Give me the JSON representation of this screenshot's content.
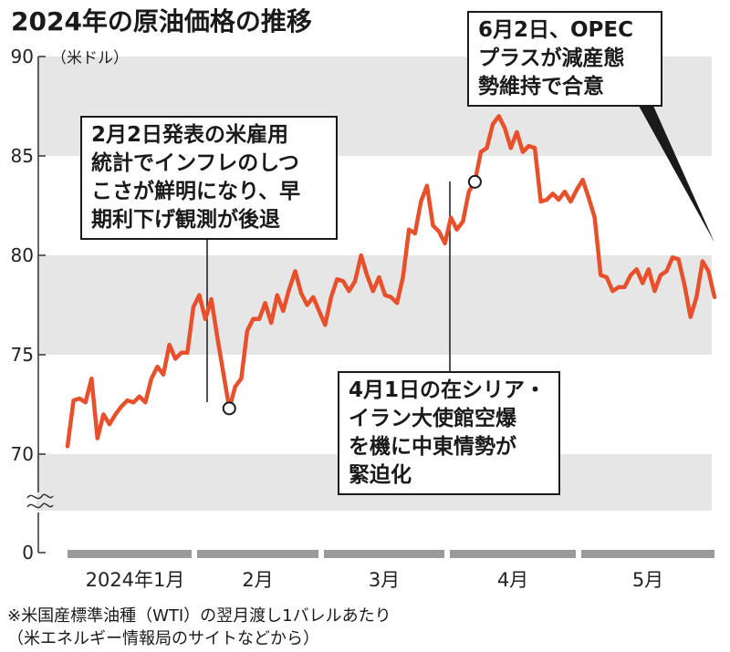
{
  "title": "2024年の原油価格の推移",
  "footnote_line1": "※米国産標準油種（WTI）の翌月渡し1バレルあたり",
  "footnote_line2": "（米エネルギー情報局のサイトなどから）",
  "annotations": [
    {
      "lines": [
        "2月2日発表の米雇用",
        "統計でインフレのしつ",
        "こさが鮮明になり、早",
        "期利下げ観測が後退"
      ]
    },
    {
      "lines": [
        "4月1日の在シリア・",
        "イラン大使館空爆",
        "を機に中東情勢が",
        "緊迫化"
      ]
    },
    {
      "lines": [
        "6月2日、OPEC",
        "プラスが減産態",
        "勢維持で合意"
      ]
    }
  ],
  "chart_data": {
    "type": "line",
    "title": "2024年の原油価格の推移",
    "y_unit": "（米ドル）",
    "y_ticks": [
      0,
      70,
      75,
      80,
      85,
      90
    ],
    "ylim": [
      70,
      90
    ],
    "axis_break": true,
    "month_labels": [
      "2024年1月",
      "2月",
      "3月",
      "4月",
      "5月"
    ],
    "colors": {
      "line": "#e8502c",
      "band": "#e6e6e6",
      "month_bar": "#9a9a9a"
    },
    "series": [
      {
        "values": [
          70.4,
          72.7,
          72.8,
          72.6,
          73.8,
          70.8,
          72.0,
          71.5,
          72.0,
          72.4,
          72.7,
          72.6,
          72.9,
          72.6,
          73.8,
          74.4,
          74.0,
          75.5,
          74.8,
          75.1,
          75.1,
          77.4,
          78.0,
          76.8,
          77.8,
          75.9,
          74.1,
          72.3,
          73.4,
          73.8,
          76.2,
          76.8,
          76.8,
          77.6,
          76.6,
          78.0,
          77.2,
          78.3,
          79.2,
          78.1,
          77.5,
          77.9,
          77.2,
          76.5,
          77.9,
          78.8,
          78.7,
          78.2,
          78.7,
          80.0,
          79.0,
          78.2,
          78.9,
          78.0,
          77.9,
          77.6,
          78.9,
          81.3,
          81.1,
          82.7,
          83.5,
          81.5,
          81.2,
          80.6,
          81.9,
          81.3,
          81.7,
          83.2,
          83.7,
          85.2,
          85.4,
          86.6,
          87.0,
          86.4,
          85.4,
          86.2,
          85.2,
          85.5,
          85.4,
          82.7,
          82.8,
          83.1,
          82.8,
          83.2,
          82.7,
          83.3,
          83.8,
          82.9,
          81.9,
          79.0,
          78.9,
          78.2,
          78.4,
          78.4,
          79.0,
          79.3,
          78.6,
          79.3,
          78.2,
          79.0,
          79.2,
          79.9,
          79.8,
          78.5,
          76.9,
          77.9,
          79.7,
          79.2,
          77.9
        ]
      }
    ]
  }
}
